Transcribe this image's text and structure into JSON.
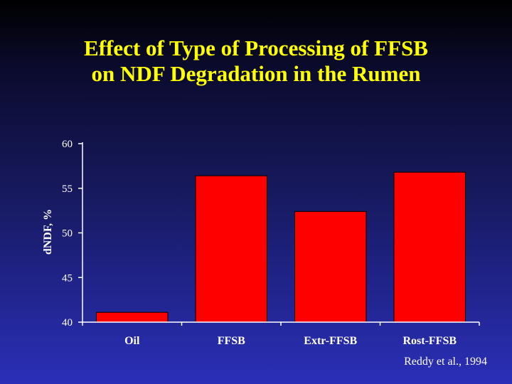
{
  "slide": {
    "title_line1": "Effect of Type of Processing of FFSB",
    "title_line2": "on NDF Degradation in the Rumen",
    "credit": "Reddy et al., 1994"
  },
  "colors": {
    "title": "#ffff00",
    "bar": "#ff0000",
    "axis": "#ffffff",
    "text": "#ffffff"
  },
  "chart_data": {
    "type": "bar",
    "categories": [
      "Oil",
      "FFSB",
      "Extr-FFSB",
      "Rost-FFSB"
    ],
    "values": [
      41.1,
      56.4,
      52.4,
      56.8
    ],
    "xlabel": "",
    "ylabel": "dNDF, %",
    "ylim": [
      40,
      60
    ],
    "yticks": [
      40,
      45,
      50,
      55,
      60
    ],
    "grid": false,
    "legend": "none"
  }
}
